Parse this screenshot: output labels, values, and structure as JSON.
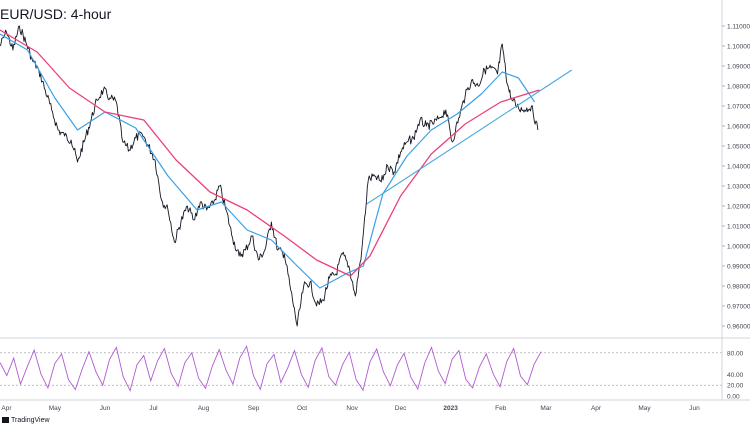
{
  "title": "EUR/USD: 4-hour",
  "watermark": "TradingView",
  "colors": {
    "price": "#131722",
    "ma_fast": "#3aa0e8",
    "ma_slow": "#ec407a",
    "trendline": "#4aa8e0",
    "stochastic": "#b05bd1",
    "grid": "#e6e6e6",
    "axis_text": "#434651"
  },
  "chart_data": [
    {
      "type": "line",
      "title": "EUR/USD: 4-hour",
      "x_ticks": [
        "Apr",
        "May",
        "Jun",
        "Jul",
        "Aug",
        "Sep",
        "Oct",
        "Nov",
        "Dec",
        "2023",
        "Feb",
        "Mar",
        "Apr",
        "May",
        "Jun"
      ],
      "y_ticks": [
        "1.11000",
        "1.10000",
        "1.09000",
        "1.08000",
        "1.07000",
        "1.06000",
        "1.05000",
        "1.04000",
        "1.03000",
        "1.02000",
        "1.01000",
        "1.00000",
        "0.99000",
        "0.98000",
        "0.97000",
        "0.96000"
      ],
      "ylim": [
        0.955,
        1.117
      ],
      "x_start": "2022-03-28",
      "x_end": "2023-06-18",
      "grid": false,
      "series": [
        {
          "role": "price",
          "points": [
            [
              "2022-03-28",
              1.1
            ],
            [
              "2022-04-01",
              1.107
            ],
            [
              "2022-04-05",
              1.098
            ],
            [
              "2022-04-09",
              1.11
            ],
            [
              "2022-04-13",
              1.102
            ],
            [
              "2022-04-17",
              1.093
            ],
            [
              "2022-04-21",
              1.088
            ],
            [
              "2022-04-25",
              1.078
            ],
            [
              "2022-04-29",
              1.068
            ],
            [
              "2022-05-03",
              1.058
            ],
            [
              "2022-05-07",
              1.055
            ],
            [
              "2022-05-11",
              1.053
            ],
            [
              "2022-05-15",
              1.042
            ],
            [
              "2022-05-19",
              1.052
            ],
            [
              "2022-05-23",
              1.062
            ],
            [
              "2022-05-27",
              1.073
            ],
            [
              "2022-05-31",
              1.078
            ],
            [
              "2022-06-04",
              1.074
            ],
            [
              "2022-06-08",
              1.072
            ],
            [
              "2022-06-12",
              1.052
            ],
            [
              "2022-06-16",
              1.048
            ],
            [
              "2022-06-20",
              1.054
            ],
            [
              "2022-06-24",
              1.056
            ],
            [
              "2022-06-28",
              1.05
            ],
            [
              "2022-07-02",
              1.043
            ],
            [
              "2022-07-06",
              1.023
            ],
            [
              "2022-07-10",
              1.018
            ],
            [
              "2022-07-14",
              1.002
            ],
            [
              "2022-07-18",
              1.012
            ],
            [
              "2022-07-22",
              1.02
            ],
            [
              "2022-07-26",
              1.013
            ],
            [
              "2022-07-30",
              1.022
            ],
            [
              "2022-08-03",
              1.018
            ],
            [
              "2022-08-07",
              1.021
            ],
            [
              "2022-08-11",
              1.03
            ],
            [
              "2022-08-15",
              1.018
            ],
            [
              "2022-08-19",
              1.004
            ],
            [
              "2022-08-23",
              0.995
            ],
            [
              "2022-08-27",
              0.998
            ],
            [
              "2022-08-31",
              1.005
            ],
            [
              "2022-09-04",
              0.993
            ],
            [
              "2022-09-08",
              0.998
            ],
            [
              "2022-09-12",
              1.012
            ],
            [
              "2022-09-16",
              0.998
            ],
            [
              "2022-09-20",
              0.996
            ],
            [
              "2022-09-24",
              0.978
            ],
            [
              "2022-09-28",
              0.96
            ],
            [
              "2022-10-02",
              0.98
            ],
            [
              "2022-10-06",
              0.982
            ],
            [
              "2022-10-10",
              0.97
            ],
            [
              "2022-10-14",
              0.973
            ],
            [
              "2022-10-18",
              0.984
            ],
            [
              "2022-10-22",
              0.986
            ],
            [
              "2022-10-26",
              0.996
            ],
            [
              "2022-10-30",
              0.99
            ],
            [
              "2022-11-03",
              0.975
            ],
            [
              "2022-11-07",
              0.998
            ],
            [
              "2022-11-11",
              1.033
            ],
            [
              "2022-11-15",
              1.035
            ],
            [
              "2022-11-19",
              1.032
            ],
            [
              "2022-11-23",
              1.04
            ],
            [
              "2022-11-27",
              1.037
            ],
            [
              "2022-12-01",
              1.047
            ],
            [
              "2022-12-05",
              1.052
            ],
            [
              "2022-12-09",
              1.054
            ],
            [
              "2022-12-13",
              1.063
            ],
            [
              "2022-12-17",
              1.06
            ],
            [
              "2022-12-21",
              1.061
            ],
            [
              "2022-12-25",
              1.064
            ],
            [
              "2022-12-29",
              1.068
            ],
            [
              "2023-01-02",
              1.052
            ],
            [
              "2023-01-06",
              1.064
            ],
            [
              "2023-01-10",
              1.075
            ],
            [
              "2023-01-14",
              1.083
            ],
            [
              "2023-01-18",
              1.08
            ],
            [
              "2023-01-22",
              1.088
            ],
            [
              "2023-01-26",
              1.089
            ],
            [
              "2023-01-30",
              1.086
            ],
            [
              "2023-02-02",
              1.101
            ],
            [
              "2023-02-05",
              1.081
            ],
            [
              "2023-02-08",
              1.073
            ],
            [
              "2023-02-12",
              1.069
            ],
            [
              "2023-02-16",
              1.068
            ],
            [
              "2023-02-20",
              1.07
            ],
            [
              "2023-02-24",
              1.058
            ]
          ]
        },
        {
          "role": "moving-average-fast",
          "points": [
            [
              "2022-03-28",
              1.106
            ],
            [
              "2022-04-14",
              1.098
            ],
            [
              "2022-05-01",
              1.074
            ],
            [
              "2022-05-15",
              1.058
            ],
            [
              "2022-06-01",
              1.067
            ],
            [
              "2022-06-20",
              1.059
            ],
            [
              "2022-07-10",
              1.035
            ],
            [
              "2022-07-28",
              1.018
            ],
            [
              "2022-08-12",
              1.022
            ],
            [
              "2022-08-28",
              1.008
            ],
            [
              "2022-09-12",
              1.003
            ],
            [
              "2022-09-28",
              0.99
            ],
            [
              "2022-10-12",
              0.979
            ],
            [
              "2022-10-28",
              0.986
            ],
            [
              "2022-11-08",
              0.99
            ],
            [
              "2022-11-20",
              1.026
            ],
            [
              "2022-12-05",
              1.045
            ],
            [
              "2022-12-20",
              1.058
            ],
            [
              "2023-01-05",
              1.066
            ],
            [
              "2023-01-20",
              1.076
            ],
            [
              "2023-02-02",
              1.087
            ],
            [
              "2023-02-12",
              1.084
            ],
            [
              "2023-02-22",
              1.072
            ]
          ]
        },
        {
          "role": "moving-average-slow",
          "points": [
            [
              "2022-03-28",
              1.108
            ],
            [
              "2022-04-20",
              1.097
            ],
            [
              "2022-05-10",
              1.079
            ],
            [
              "2022-06-01",
              1.067
            ],
            [
              "2022-06-25",
              1.063
            ],
            [
              "2022-07-15",
              1.043
            ],
            [
              "2022-08-05",
              1.027
            ],
            [
              "2022-08-28",
              1.018
            ],
            [
              "2022-09-20",
              1.005
            ],
            [
              "2022-10-10",
              0.993
            ],
            [
              "2022-10-31",
              0.985
            ],
            [
              "2022-11-12",
              0.995
            ],
            [
              "2022-12-01",
              1.025
            ],
            [
              "2022-12-20",
              1.046
            ],
            [
              "2023-01-10",
              1.061
            ],
            [
              "2023-02-01",
              1.072
            ],
            [
              "2023-02-25",
              1.078
            ]
          ]
        },
        {
          "role": "trendline",
          "points": [
            [
              "2022-11-10",
              1.021
            ],
            [
              "2023-03-17",
              1.088
            ]
          ]
        }
      ]
    },
    {
      "type": "line",
      "y_ticks": [
        "80.00",
        "40.00",
        "20.00",
        "0.00"
      ],
      "ylim": [
        0,
        100
      ],
      "levels": [
        80,
        20
      ],
      "series": [
        {
          "role": "stochastic-oscillator",
          "x_start": "2022-03-28",
          "x_end": "2023-02-26",
          "values": [
            62,
            38,
            70,
            22,
            55,
            85,
            40,
            15,
            60,
            78,
            30,
            12,
            50,
            82,
            45,
            20,
            68,
            90,
            35,
            10,
            58,
            75,
            28,
            65,
            88,
            42,
            18,
            62,
            80,
            33,
            14,
            55,
            86,
            48,
            22,
            70,
            92,
            38,
            12,
            60,
            77,
            25,
            52,
            84,
            40,
            16,
            66,
            89,
            36,
            20,
            58,
            81,
            30,
            11,
            63,
            87,
            44,
            19,
            57,
            79,
            34,
            13,
            61,
            90,
            46,
            23,
            68,
            84,
            31,
            15,
            54,
            78,
            41,
            17,
            64,
            88,
            37,
            21,
            59,
            82
          ]
        }
      ]
    }
  ]
}
